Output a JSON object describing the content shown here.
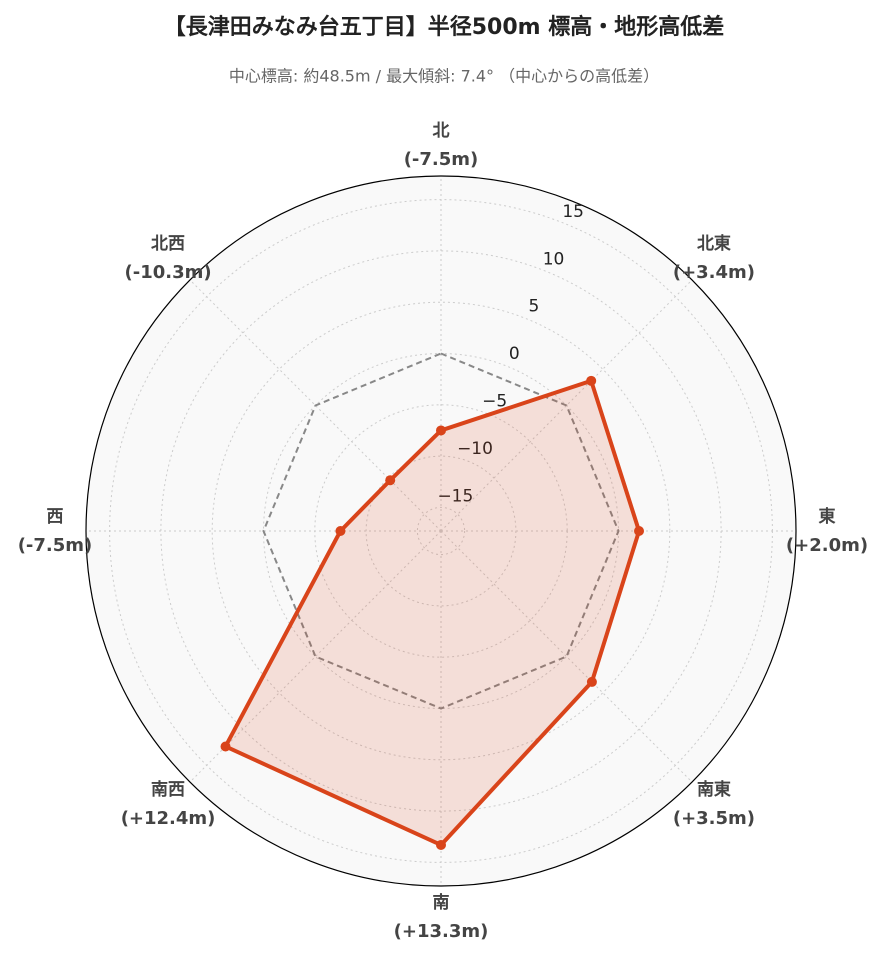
{
  "chart_data": {
    "type": "radar",
    "title": "【長津田みなみ台五丁目】半径500m 標高・地形高低差",
    "subtitle": "中心標高: 約48.5m / 最大傾斜: 7.4° （中心からの高低差）",
    "categories": [
      "北",
      "北東",
      "東",
      "南東",
      "南",
      "南西",
      "西",
      "北西"
    ],
    "values": [
      -7.5,
      3.4,
      2.0,
      3.5,
      13.3,
      12.4,
      -7.5,
      -10.3
    ],
    "value_labels": [
      "(-7.5m)",
      "(+3.4m)",
      "(+2.0m)",
      "(+3.5m)",
      "(+13.3m)",
      "(+12.4m)",
      "(-7.5m)",
      "(-10.3m)"
    ],
    "color": "#d9441a",
    "reference": 0,
    "rlim": [
      -17.3,
      17.3
    ],
    "rticks": [
      {
        "value": -15,
        "label": "−15"
      },
      {
        "value": -10,
        "label": "−10"
      },
      {
        "value": -5,
        "label": "−5"
      },
      0,
      5,
      10,
      15
    ],
    "grid": true
  }
}
